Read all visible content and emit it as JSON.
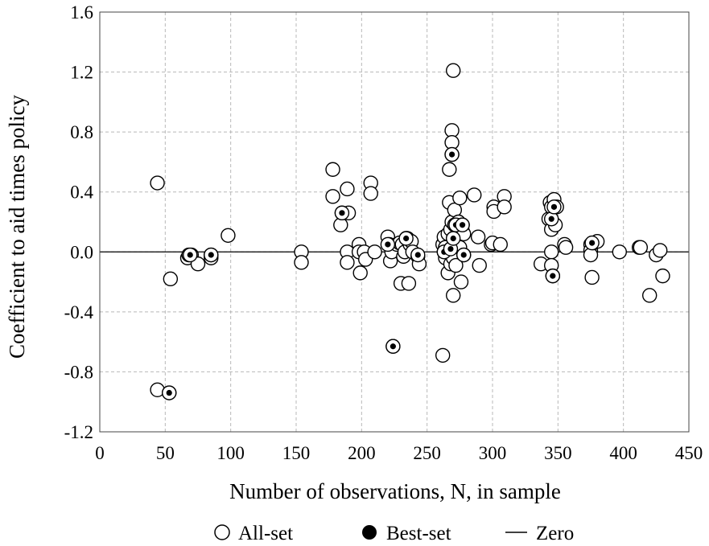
{
  "chart_data": {
    "type": "scatter",
    "title": "",
    "xlabel": "Number of observations, N, in sample",
    "ylabel": "Coefficient to aid times policy",
    "xlim": [
      0,
      450
    ],
    "ylim": [
      -1.2,
      1.6
    ],
    "xticks": [
      0,
      50,
      100,
      150,
      200,
      250,
      300,
      350,
      400,
      450
    ],
    "yticks": [
      -1.2,
      -0.8,
      -0.4,
      0.0,
      0.4,
      0.8,
      1.2,
      1.6
    ],
    "xtick_labels": [
      "0",
      "50",
      "100",
      "150",
      "200",
      "250",
      "300",
      "350",
      "400",
      "450"
    ],
    "ytick_labels": [
      "-1.2",
      "-0.8",
      "-0.4",
      "0.0",
      "0.4",
      "0.8",
      "1.2",
      "1.6"
    ],
    "grid": true,
    "legend_placement": "bottom",
    "legend": [
      {
        "label": "All-set",
        "marker": "open-circle"
      },
      {
        "label": "Best-set",
        "marker": "filled-dot"
      },
      {
        "label": "Zero",
        "marker": "line"
      }
    ],
    "zero_line": 0.0,
    "series": [
      {
        "name": "All-set",
        "points": [
          [
            44,
            0.46
          ],
          [
            44,
            -0.92
          ],
          [
            53,
            -0.94
          ],
          [
            54,
            -0.18
          ],
          [
            67,
            -0.04
          ],
          [
            68,
            -0.02
          ],
          [
            70,
            -0.02
          ],
          [
            75,
            -0.08
          ],
          [
            85,
            -0.04
          ],
          [
            85,
            -0.02
          ],
          [
            98,
            0.11
          ],
          [
            154,
            0.0
          ],
          [
            154,
            -0.07
          ],
          [
            178,
            0.55
          ],
          [
            178,
            0.37
          ],
          [
            184,
            0.18
          ],
          [
            185,
            0.26
          ],
          [
            189,
            0.42
          ],
          [
            189,
            0.0
          ],
          [
            189,
            -0.07
          ],
          [
            190,
            0.26
          ],
          [
            198,
            0.05
          ],
          [
            198,
            0.0
          ],
          [
            199,
            -0.14
          ],
          [
            202,
            0.0
          ],
          [
            203,
            -0.05
          ],
          [
            207,
            0.46
          ],
          [
            207,
            0.39
          ],
          [
            210,
            0.0
          ],
          [
            220,
            0.1
          ],
          [
            221,
            0.05
          ],
          [
            222,
            -0.06
          ],
          [
            223,
            0.0
          ],
          [
            224,
            -0.63
          ],
          [
            227,
            0.05
          ],
          [
            229,
            0.06
          ],
          [
            230,
            -0.21
          ],
          [
            231,
            0.05
          ],
          [
            232,
            -0.03
          ],
          [
            233,
            0.0
          ],
          [
            234,
            0.09
          ],
          [
            235,
            0.09
          ],
          [
            236,
            -0.21
          ],
          [
            237,
            0.05
          ],
          [
            238,
            0.07
          ],
          [
            239,
            0.0
          ],
          [
            243,
            -0.03
          ],
          [
            244,
            -0.08
          ],
          [
            262,
            -0.69
          ],
          [
            262,
            0.05
          ],
          [
            263,
            0.1
          ],
          [
            263,
            0.0
          ],
          [
            264,
            0.03
          ],
          [
            264,
            -0.04
          ],
          [
            266,
            0.12
          ],
          [
            266,
            -0.14
          ],
          [
            267,
            0.33
          ],
          [
            267,
            0.55
          ],
          [
            268,
            0.15
          ],
          [
            268,
            0.02
          ],
          [
            268,
            -0.08
          ],
          [
            269,
            0.2
          ],
          [
            269,
            0.81
          ],
          [
            269,
            0.73
          ],
          [
            269,
            0.65
          ],
          [
            270,
            1.21
          ],
          [
            270,
            0.09
          ],
          [
            270,
            -0.04
          ],
          [
            270,
            -0.29
          ],
          [
            271,
            0.18
          ],
          [
            271,
            0.28
          ],
          [
            272,
            0.05
          ],
          [
            272,
            -0.09
          ],
          [
            273,
            0.19
          ],
          [
            273,
            0.08
          ],
          [
            274,
            0.2
          ],
          [
            275,
            0.36
          ],
          [
            275,
            0.03
          ],
          [
            276,
            -0.2
          ],
          [
            277,
            0.14
          ],
          [
            277,
            0.18
          ],
          [
            278,
            0.12
          ],
          [
            278,
            -0.02
          ],
          [
            286,
            0.38
          ],
          [
            289,
            0.1
          ],
          [
            290,
            -0.09
          ],
          [
            299,
            0.05
          ],
          [
            300,
            0.06
          ],
          [
            301,
            0.3
          ],
          [
            301,
            0.27
          ],
          [
            306,
            0.05
          ],
          [
            309,
            0.37
          ],
          [
            309,
            0.3
          ],
          [
            337,
            -0.08
          ],
          [
            343,
            0.22
          ],
          [
            344,
            0.33
          ],
          [
            345,
            0.3
          ],
          [
            345,
            0.15
          ],
          [
            345,
            0.0
          ],
          [
            345,
            -0.09
          ],
          [
            346,
            -0.16
          ],
          [
            347,
            0.35
          ],
          [
            348,
            0.18
          ],
          [
            349,
            0.3
          ],
          [
            355,
            0.05
          ],
          [
            356,
            0.03
          ],
          [
            375,
            0.05
          ],
          [
            375,
            0.01
          ],
          [
            375,
            -0.02
          ],
          [
            376,
            -0.17
          ],
          [
            377,
            0.06
          ],
          [
            380,
            0.07
          ],
          [
            397,
            0.0
          ],
          [
            412,
            0.03
          ],
          [
            413,
            0.03
          ],
          [
            420,
            -0.29
          ],
          [
            425,
            -0.02
          ],
          [
            428,
            0.01
          ],
          [
            430,
            -0.16
          ]
        ]
      },
      {
        "name": "Best-set",
        "points": [
          [
            53,
            -0.94
          ],
          [
            69,
            -0.02
          ],
          [
            85,
            -0.02
          ],
          [
            185,
            0.26
          ],
          [
            220,
            0.05
          ],
          [
            224,
            -0.63
          ],
          [
            234,
            0.09
          ],
          [
            243,
            -0.02
          ],
          [
            263,
            0.0
          ],
          [
            268,
            0.02
          ],
          [
            269,
            0.65
          ],
          [
            270,
            0.09
          ],
          [
            272,
            0.18
          ],
          [
            277,
            0.18
          ],
          [
            278,
            -0.02
          ],
          [
            345,
            0.22
          ],
          [
            346,
            -0.16
          ],
          [
            347,
            0.3
          ],
          [
            376,
            0.06
          ]
        ]
      }
    ]
  }
}
